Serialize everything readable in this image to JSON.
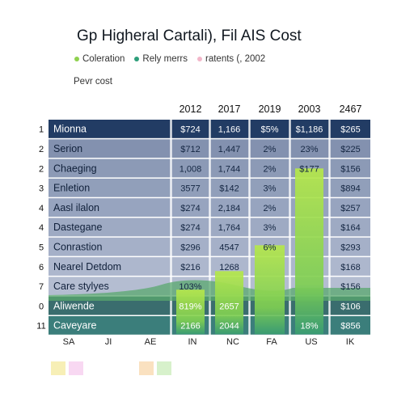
{
  "chart_data": {
    "type": "table",
    "title": "Gp Higheral Cartali), Fil AIS Cost",
    "subtitle": "Pevr cost",
    "legend": [
      "Coleration",
      "Rely merrs",
      "ratents (, 2002"
    ],
    "legend_colors": [
      "#8fd14f",
      "#2e9e7a",
      "#f2b6c9"
    ],
    "columns": [
      "2012",
      "2017",
      "2019",
      "2003",
      "2467"
    ],
    "rows": [
      {
        "num": "1",
        "label": "Mionna",
        "cells": [
          "$724",
          "1,166",
          "$5%",
          "$1,186",
          "$265"
        ]
      },
      {
        "num": "2",
        "label": "Serion",
        "cells": [
          "$712",
          "1,447",
          "2%",
          "23%",
          "$225"
        ]
      },
      {
        "num": "2",
        "label": "Chaeging",
        "cells": [
          "1,008",
          "1,744",
          "2%",
          "$177",
          "$156"
        ]
      },
      {
        "num": "3",
        "label": "Enletion",
        "cells": [
          "3577",
          "$142",
          "3%",
          "",
          "$894"
        ]
      },
      {
        "num": "4",
        "label": "Aasl ilalon",
        "cells": [
          "$274",
          "2,184",
          "2%",
          "",
          "$257"
        ]
      },
      {
        "num": "4",
        "label": "Dastegane",
        "cells": [
          "$274",
          "1,764",
          "3%",
          "",
          "$164"
        ]
      },
      {
        "num": "5",
        "label": "Conrastion",
        "cells": [
          "$296",
          "4547",
          "6%",
          "",
          "$293"
        ]
      },
      {
        "num": "6",
        "label": "Nearel Detdom",
        "cells": [
          "$216",
          "1268",
          "",
          "",
          "$168"
        ]
      },
      {
        "num": "7",
        "label": "Care stylyes",
        "cells": [
          "103%",
          "",
          "",
          "",
          "$156"
        ]
      },
      {
        "num": "0",
        "label": "Aliwende",
        "cells": [
          "819%",
          "2657",
          "",
          "",
          "$106"
        ]
      },
      {
        "num": "11",
        "label": "Caveyare",
        "cells": [
          "2166",
          "2044",
          "",
          "18%",
          "$856"
        ]
      }
    ],
    "bars": [
      {
        "column": "2012",
        "value": 55
      },
      {
        "column": "2017",
        "value": 78
      },
      {
        "column": "2019",
        "value": 110
      },
      {
        "column": "2003",
        "value": 205
      }
    ],
    "x_labels": [
      "SA",
      "JI",
      "AE",
      "IN",
      "NC",
      "FA",
      "US",
      "IK"
    ],
    "swatch_colors": [
      "#f1e27a",
      "#f3b8e8",
      "#f5c98c",
      "#b6e6a0"
    ]
  }
}
